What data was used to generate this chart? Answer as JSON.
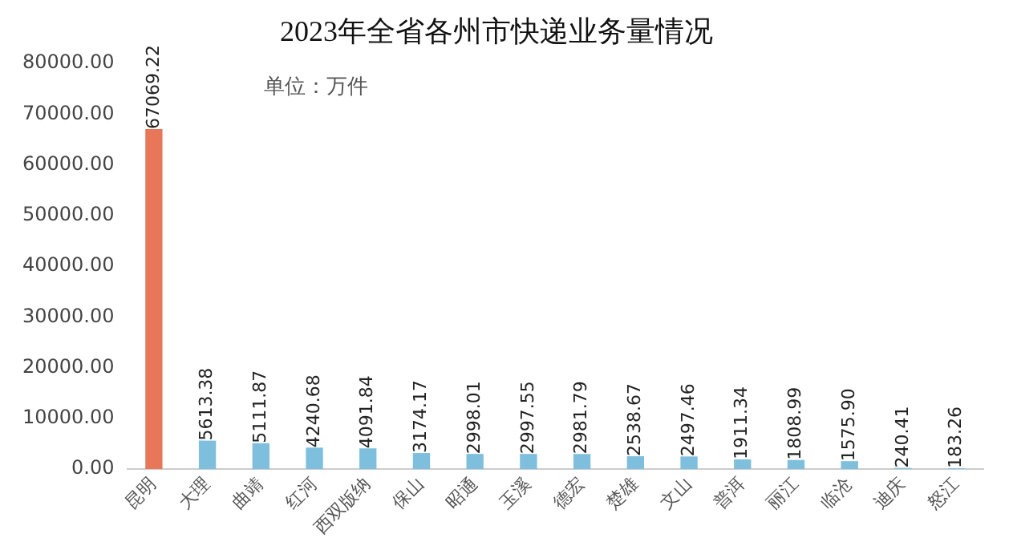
{
  "chart_data": {
    "type": "bar",
    "title": "2023年全省各州市快递业务量情况",
    "annotations": [
      "单位：万件"
    ],
    "categories": [
      "昆明",
      "大理",
      "曲靖",
      "红河",
      "西双版纳",
      "保山",
      "昭通",
      "玉溪",
      "德宏",
      "楚雄",
      "文山",
      "普洱",
      "丽江",
      "临沧",
      "迪庆",
      "怒江"
    ],
    "values": [
      67069.22,
      5613.38,
      5111.87,
      4240.68,
      4091.84,
      3174.17,
      2998.01,
      2997.55,
      2981.79,
      2538.67,
      2497.46,
      1911.34,
      1808.99,
      1575.9,
      240.41,
      183.26
    ],
    "value_labels": [
      "67069.22",
      "5613.38",
      "5111.87",
      "4240.68",
      "4091.84",
      "3174.17",
      "2998.01",
      "2997.55",
      "2981.79",
      "2538.67",
      "2497.46",
      "1911.34",
      "1808.99",
      "1575.90",
      "240.41",
      "183.26"
    ],
    "colors": [
      "#e8775a",
      "#7fbfde",
      "#7fbfde",
      "#7fbfde",
      "#7fbfde",
      "#7fbfde",
      "#7fbfde",
      "#7fbfde",
      "#7fbfde",
      "#7fbfde",
      "#7fbfde",
      "#7fbfde",
      "#7fbfde",
      "#7fbfde",
      "#7fbfde",
      "#7fbfde"
    ],
    "ylim": [
      0,
      80000
    ],
    "yticks": [
      {
        "value": 0,
        "label": "0.00"
      },
      {
        "value": 10000,
        "label": "10000.00"
      },
      {
        "value": 20000,
        "label": "20000.00"
      },
      {
        "value": 30000,
        "label": "30000.00"
      },
      {
        "value": 40000,
        "label": "40000.00"
      },
      {
        "value": 50000,
        "label": "50000.00"
      },
      {
        "value": 60000,
        "label": "60000.00"
      },
      {
        "value": 70000,
        "label": "70000.00"
      },
      {
        "value": 80000,
        "label": "80000.00"
      }
    ],
    "grid": false,
    "legend": false
  }
}
